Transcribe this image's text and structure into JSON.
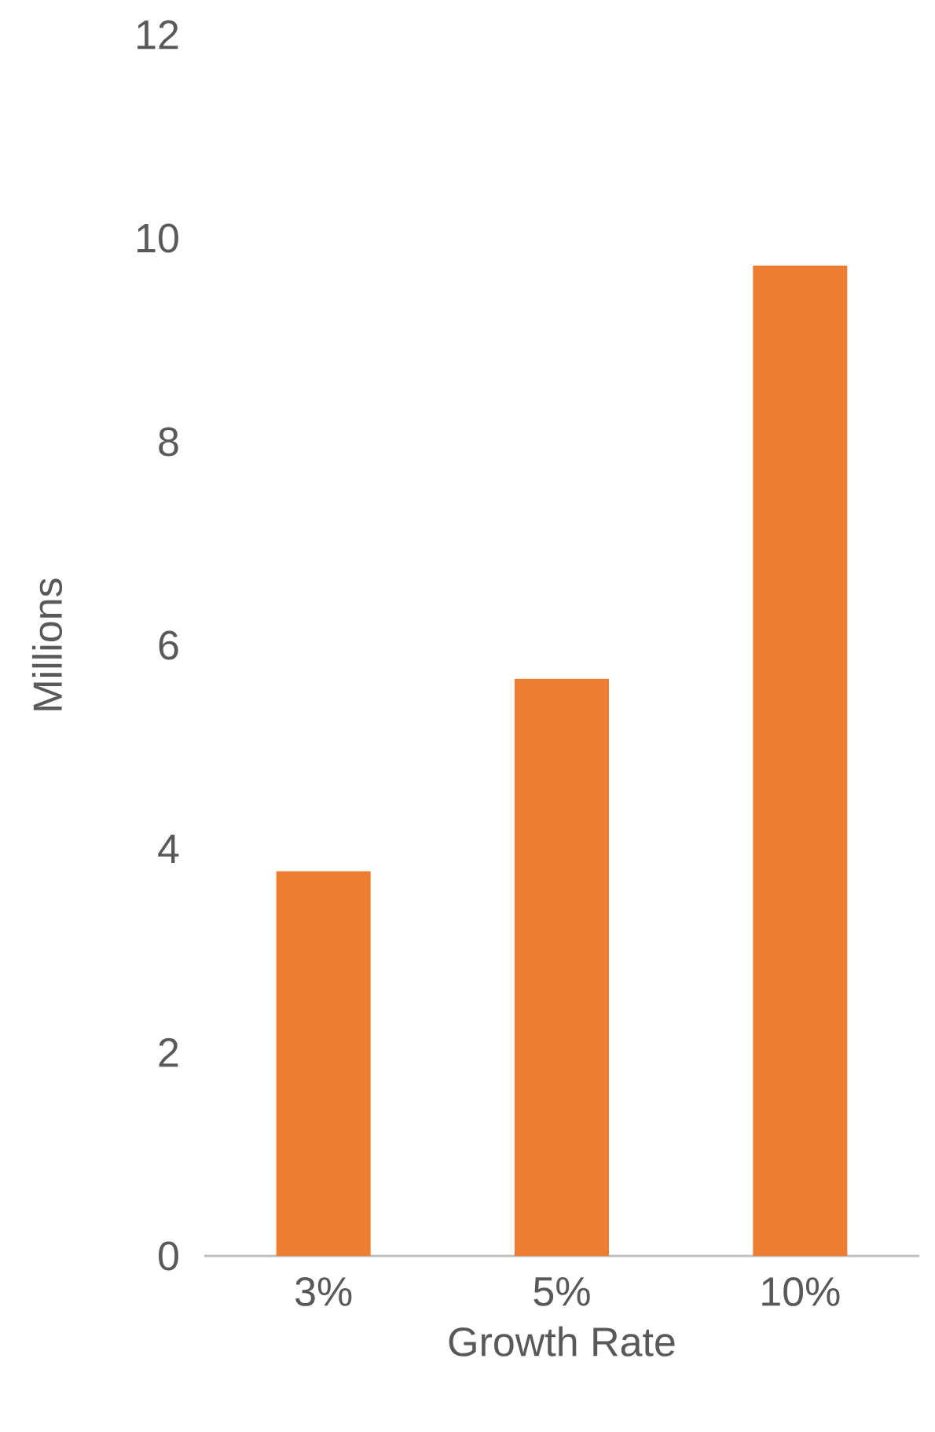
{
  "chart_data": {
    "type": "bar",
    "xlabel": "Growth Rate",
    "ylabel": "Millions",
    "categories": [
      "3%",
      "5%",
      "10%"
    ],
    "values": [
      3.78,
      5.67,
      9.73
    ],
    "color": "#ed7d31",
    "ylim": [
      0,
      12
    ],
    "yticks": [
      0,
      2,
      4,
      6,
      8,
      10,
      12
    ]
  }
}
